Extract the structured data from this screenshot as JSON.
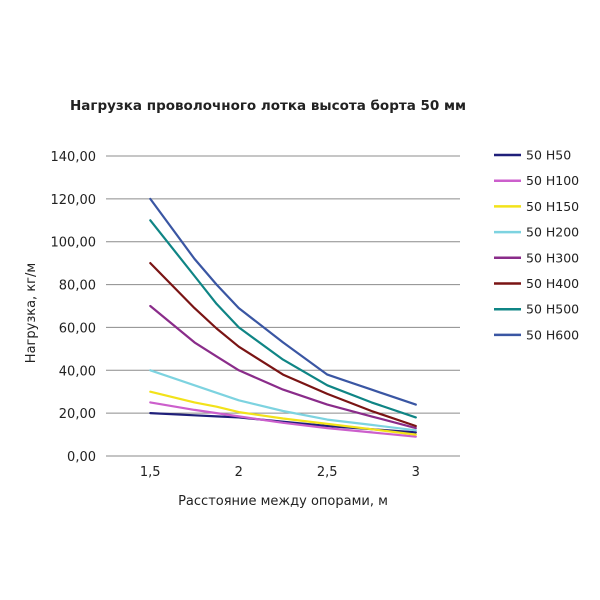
{
  "chart_data": {
    "type": "line",
    "title": "Нагрузка проволочного лотка высота борта 50 мм",
    "xlabel": "Расстояние между опорами, м",
    "ylabel": "Нагрузка, кг/м",
    "x": [
      1.5,
      1.75,
      1.875,
      2,
      2.25,
      2.5,
      2.75,
      3
    ],
    "x_ticks": [
      1.5,
      2,
      2.5,
      3
    ],
    "x_tick_labels": [
      "1,5",
      "2",
      "2,5",
      "3"
    ],
    "y_ticks": [
      0,
      20,
      40,
      60,
      80,
      100,
      120,
      140
    ],
    "y_tick_labels": [
      "0,00",
      "20,00",
      "40,00",
      "60,00",
      "80,00",
      "100,00",
      "120,00",
      "140,00"
    ],
    "xlim": [
      1.25,
      3.25
    ],
    "ylim": [
      0,
      140
    ],
    "grid": "horizontal",
    "legend_position": "right",
    "series": [
      {
        "name": "50 H50",
        "color": "#1f1f7a",
        "values": [
          20,
          19,
          18.5,
          18,
          16,
          14,
          12.5,
          11
        ]
      },
      {
        "name": "50 H100",
        "color": "#cc5fcc",
        "values": [
          25,
          21.5,
          20,
          18.5,
          15.5,
          13,
          11,
          9
        ]
      },
      {
        "name": "50 H150",
        "color": "#f2e21a",
        "values": [
          30,
          25,
          23,
          20.5,
          17.5,
          15,
          12.5,
          10
        ]
      },
      {
        "name": "50 H200",
        "color": "#7dd3e0",
        "values": [
          40,
          33,
          29.5,
          26,
          21,
          17,
          14.5,
          12
        ]
      },
      {
        "name": "50 H300",
        "color": "#8a2c8a",
        "values": [
          70,
          53,
          46.5,
          40,
          31,
          24,
          18.5,
          13
        ]
      },
      {
        "name": "50 H400",
        "color": "#7a1414",
        "values": [
          90,
          69,
          59.5,
          51,
          38,
          29,
          21,
          14
        ]
      },
      {
        "name": "50 H500",
        "color": "#0f8585",
        "values": [
          110,
          84,
          71,
          60,
          45,
          33,
          25,
          18
        ]
      },
      {
        "name": "50 H600",
        "color": "#3a56a3",
        "values": [
          120,
          92,
          80,
          69,
          53,
          38,
          31,
          24
        ]
      }
    ]
  }
}
